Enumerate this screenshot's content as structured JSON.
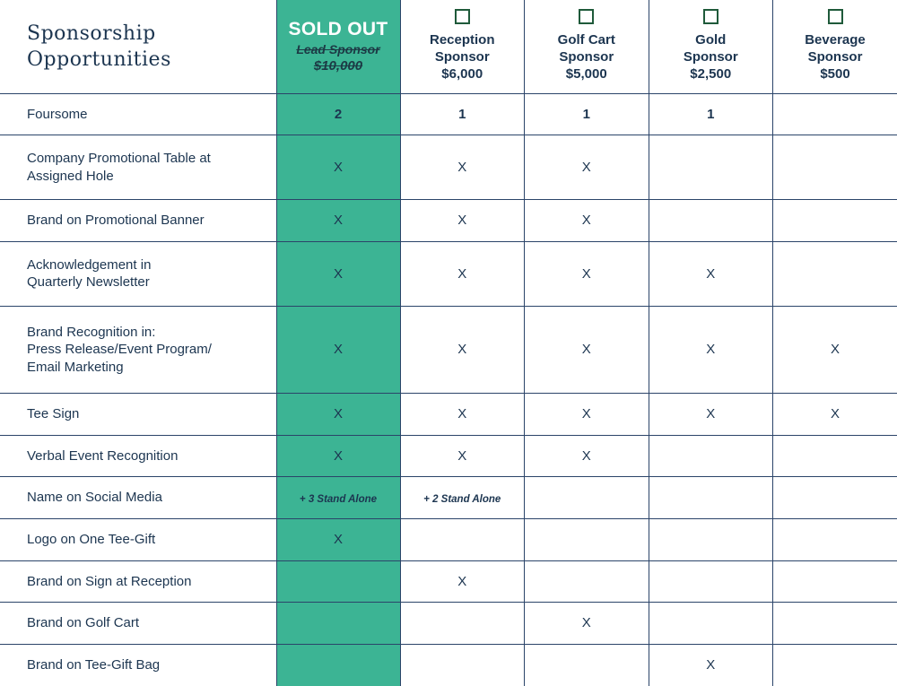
{
  "header": {
    "title": "Sponsorship\nOpportunities",
    "lead": {
      "status": "SOLD OUT",
      "name": "Lead Sponsor",
      "price": "$10,000"
    },
    "sponsors": [
      {
        "name_line1": "Reception",
        "name_line2": "Sponsor",
        "price": "$6,000"
      },
      {
        "name_line1": "Golf Cart",
        "name_line2": "Sponsor",
        "price": "$5,000"
      },
      {
        "name_line1": "Gold",
        "name_line2": "Sponsor",
        "price": "$2,500"
      },
      {
        "name_line1": "Beverage",
        "name_line2": "Sponsor",
        "price": "$500"
      }
    ]
  },
  "rows": [
    {
      "label": "Foursome",
      "values": [
        "2",
        "1",
        "1",
        "1",
        ""
      ]
    },
    {
      "label": "Company Promotional Table at\nAssigned Hole",
      "values": [
        "X",
        "X",
        "X",
        "",
        ""
      ]
    },
    {
      "label": "Brand on Promotional Banner",
      "values": [
        "X",
        "X",
        "X",
        "",
        ""
      ]
    },
    {
      "label": "Acknowledgement in\nQuarterly Newsletter",
      "values": [
        "X",
        "X",
        "X",
        "X",
        ""
      ]
    },
    {
      "label": "Brand Recognition in:\nPress Release/Event Program/\nEmail Marketing",
      "values": [
        "X",
        "X",
        "X",
        "X",
        "X"
      ]
    },
    {
      "label": "Tee Sign",
      "values": [
        "X",
        "X",
        "X",
        "X",
        "X"
      ]
    },
    {
      "label": "Verbal Event Recognition",
      "values": [
        "X",
        "X",
        "X",
        "",
        ""
      ]
    },
    {
      "label": "Name on Social Media",
      "values": [
        "+ 3 Stand Alone",
        "+ 2 Stand Alone",
        "",
        "",
        ""
      ]
    },
    {
      "label": "Logo on One Tee-Gift",
      "values": [
        "X",
        "",
        "",
        "",
        ""
      ]
    },
    {
      "label": "Brand on Sign at Reception",
      "values": [
        "",
        "X",
        "",
        "",
        ""
      ]
    },
    {
      "label": "Brand on Golf Cart",
      "values": [
        "",
        "",
        "X",
        "",
        ""
      ]
    },
    {
      "label": "Brand on Tee-Gift Bag",
      "values": [
        "",
        "",
        "",
        "X",
        ""
      ]
    }
  ],
  "colors": {
    "lead_bg": "#3cb494",
    "text": "#1c3550",
    "grid": "#2b4469",
    "checkbox": "#1f5a3a"
  }
}
